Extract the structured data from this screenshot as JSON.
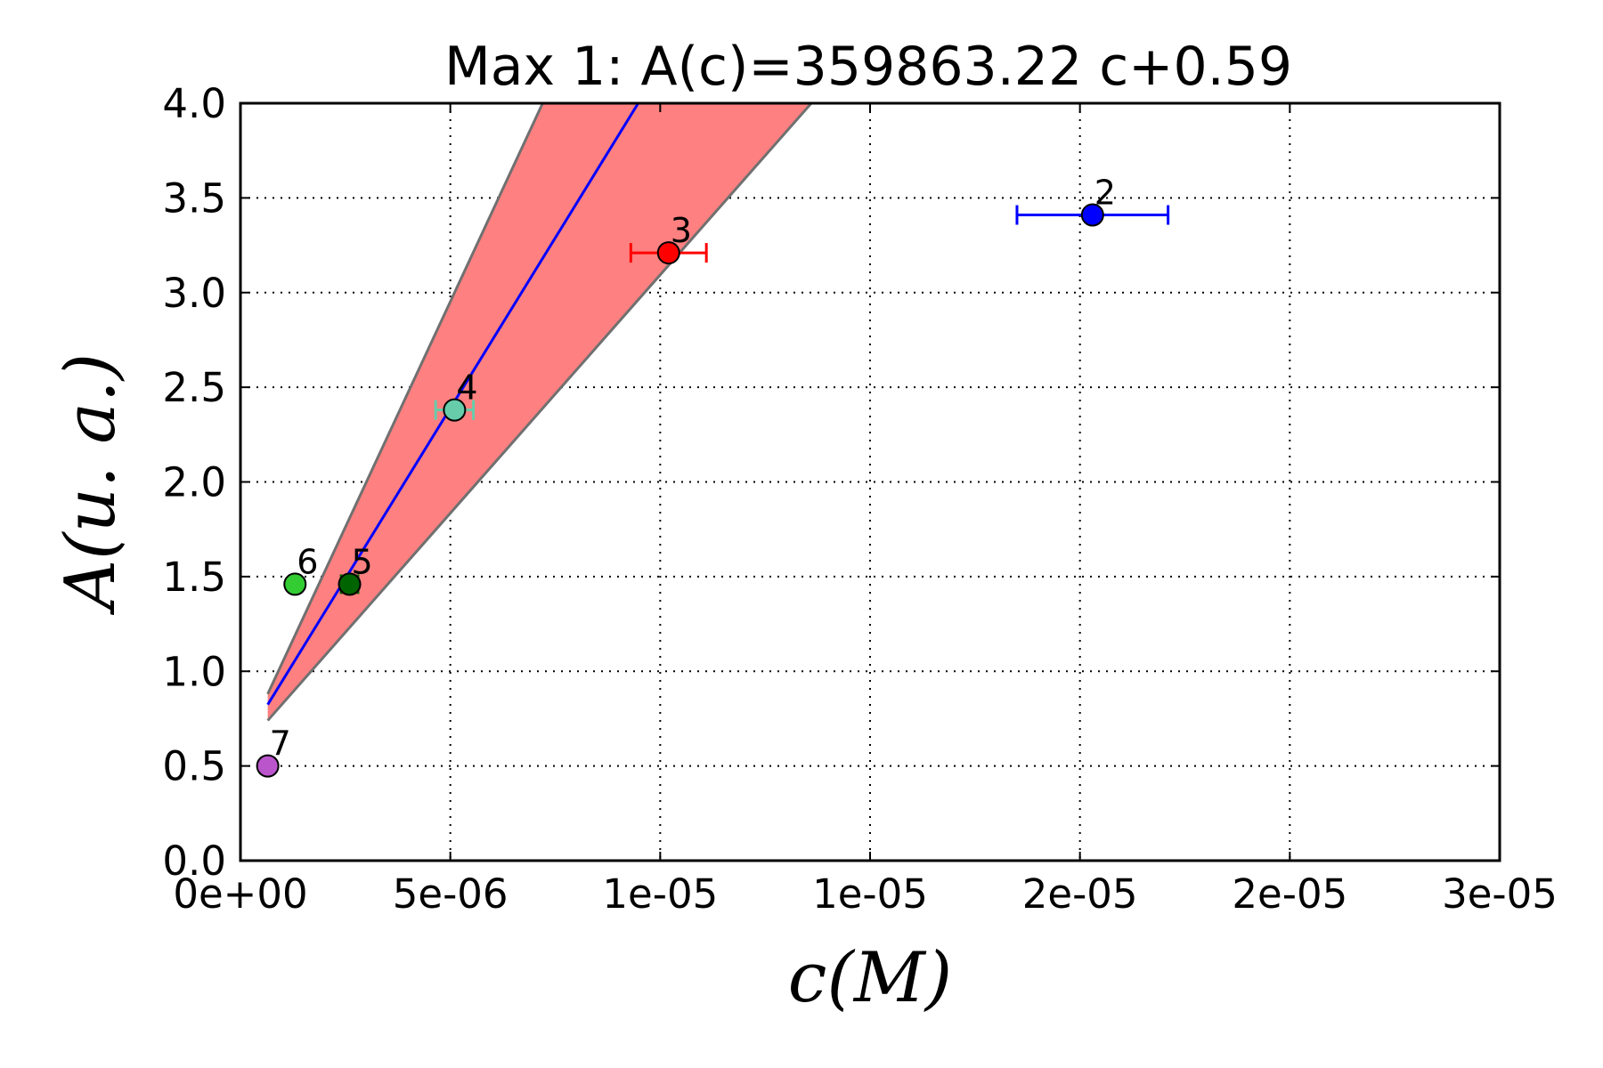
{
  "chart_data": {
    "type": "scatter",
    "title": "Max 1: A(c)=359863.22 c+0.59",
    "xlabel": "c(M)",
    "ylabel": "A(u. a.)",
    "xlim": [
      0,
      3e-05
    ],
    "ylim": [
      0,
      4.0
    ],
    "grid": true,
    "x_tick_values": [
      0,
      5e-06,
      1e-05,
      1.5e-05,
      2e-05,
      2.5e-05,
      3e-05
    ],
    "x_tick_labels": [
      "0e+00",
      "5e-06",
      "1e-05",
      "1e-05",
      "2e-05",
      "2e-05",
      "3e-05"
    ],
    "y_tick_values": [
      0,
      0.5,
      1.0,
      1.5,
      2.0,
      2.5,
      3.0,
      3.5,
      4.0
    ],
    "y_tick_labels": [
      "0.0",
      "0.5",
      "1.0",
      "1.5",
      "2.0",
      "2.5",
      "3.0",
      "3.5",
      "4.0"
    ],
    "fit": {
      "slope": 359863.22,
      "intercept": 0.59,
      "x_range": [
        6.5e-07,
        9.5e-06
      ],
      "color": "#0000ff"
    },
    "band": {
      "color": "#ff8080",
      "edge_color": "#707070",
      "upper": [
        [
          6.5e-07,
          0.88
        ],
        [
          7.2e-06,
          4.0
        ]
      ],
      "lower": [
        [
          6.5e-07,
          0.74
        ],
        [
          1.36e-05,
          4.0
        ]
      ]
    },
    "points": [
      {
        "label": "2",
        "x": 2.03e-05,
        "y": 3.41,
        "xerr": 1.8e-06,
        "color": "#0000ff"
      },
      {
        "label": "3",
        "x": 1.02e-05,
        "y": 3.21,
        "xerr": 9e-07,
        "color": "#ff0000"
      },
      {
        "label": "4",
        "x": 5.1e-06,
        "y": 2.38,
        "xerr": 4.5e-07,
        "color": "#66ccaa"
      },
      {
        "label": "5",
        "x": 2.6e-06,
        "y": 1.46,
        "xerr": 2e-07,
        "color": "#006400"
      },
      {
        "label": "6",
        "x": 1.3e-06,
        "y": 1.46,
        "xerr": 0,
        "color": "#33cc33"
      },
      {
        "label": "7",
        "x": 6.5e-07,
        "y": 0.5,
        "xerr": 0,
        "color": "#bb55cc"
      }
    ]
  }
}
